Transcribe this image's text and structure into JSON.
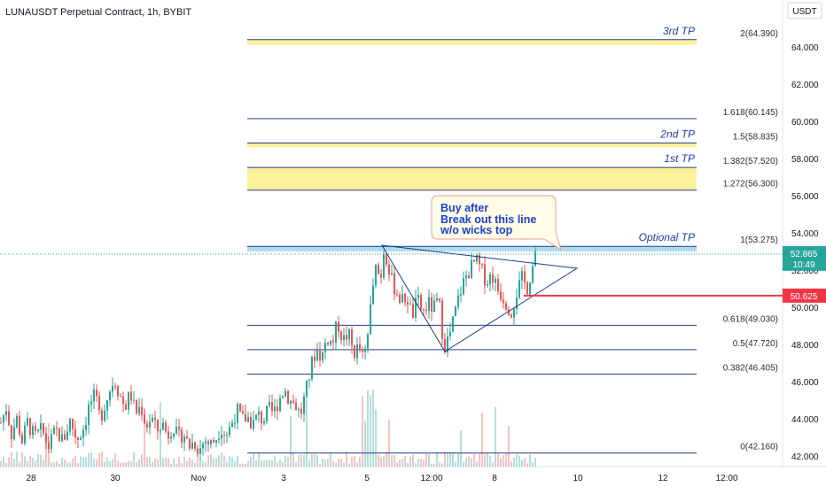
{
  "header": {
    "title": "LUNAUSDT Perpetual Contract, 1h, BYBIT",
    "currency": "USDT"
  },
  "colors": {
    "up": "#26a69a",
    "down": "#ef5350",
    "fib_line": "#283a8c",
    "tp_zone": "#fdf08a",
    "optional_zone": "#8fd3ec",
    "stop_line": "#f23645",
    "triangle": "#1e3a8a",
    "annotation_border": "#ef9a9a"
  },
  "chart_data": {
    "type": "candlestick",
    "symbol": "LUNAUSDT",
    "interval": "1h",
    "ylim": [
      41.8,
      65.5
    ],
    "y_ticks": [
      42,
      44,
      46,
      48,
      50,
      52,
      54,
      56,
      58,
      60,
      62,
      64
    ],
    "y_tick_labels": [
      "42.000",
      "44.000",
      "46.000",
      "48.000",
      "50.000",
      "52.000",
      "54.000",
      "56.000",
      "58.000",
      "60.000",
      "62.000",
      "64.000"
    ],
    "x_tick_labels": [
      "28",
      "30",
      "Nov",
      "3",
      "5",
      "12:00",
      "8",
      "10",
      "12",
      "12:00"
    ],
    "last_price": 52.865,
    "last_price_label": "52.865",
    "countdown": "10:49",
    "stop_level": 50.625,
    "stop_label": "50.625",
    "fib_levels": [
      {
        "label": "0(42.160)",
        "value": 42.16
      },
      {
        "label": "0.382(46.405)",
        "value": 46.405
      },
      {
        "label": "0.5(47.720)",
        "value": 47.72
      },
      {
        "label": "0.618(49.030)",
        "value": 49.03
      },
      {
        "label": "1(53.275)",
        "value": 53.275
      },
      {
        "label": "1.272(56.300)",
        "value": 56.3
      },
      {
        "label": "1.382(57.520)",
        "value": 57.52
      },
      {
        "label": "1.5(58.835)",
        "value": 58.835
      },
      {
        "label": "1.618(60.145)",
        "value": 60.145
      },
      {
        "label": "2(64.390)",
        "value": 64.39
      }
    ],
    "tp_zones": [
      {
        "label": "Optional TP",
        "from": 53.275,
        "to": 53.0,
        "kind": "optional"
      },
      {
        "label": "1st TP",
        "from": 56.3,
        "to": 57.52,
        "kind": "tp"
      },
      {
        "label": "2nd TP",
        "from": 58.835,
        "to": 58.6,
        "kind": "tp"
      },
      {
        "label": "3rd TP",
        "from": 64.39,
        "to": 64.1,
        "kind": "tp"
      }
    ],
    "annotation": "Buy after\nBreak out this line\nw/o wicks top",
    "price_path": [
      [
        0,
        43.8
      ],
      [
        6,
        44.6
      ],
      [
        12,
        43.2
      ],
      [
        18,
        44.0
      ],
      [
        24,
        42.8
      ],
      [
        30,
        43.8
      ],
      [
        38,
        43.0
      ],
      [
        46,
        43.4
      ],
      [
        54,
        42.5
      ],
      [
        62,
        43.4
      ],
      [
        70,
        42.8
      ],
      [
        78,
        43.9
      ],
      [
        86,
        42.9
      ],
      [
        94,
        43.6
      ],
      [
        100,
        44.8
      ],
      [
        106,
        45.2
      ],
      [
        112,
        44.0
      ],
      [
        118,
        44.9
      ],
      [
        124,
        45.7
      ],
      [
        128,
        46.2
      ],
      [
        134,
        45.3
      ],
      [
        140,
        44.6
      ],
      [
        146,
        45.4
      ],
      [
        152,
        44.3
      ],
      [
        158,
        44.7
      ],
      [
        164,
        43.6
      ],
      [
        170,
        44.1
      ],
      [
        176,
        43.3
      ],
      [
        182,
        43.8
      ],
      [
        188,
        43.1
      ],
      [
        194,
        43.7
      ],
      [
        200,
        42.9
      ],
      [
        206,
        43.3
      ],
      [
        212,
        42.5
      ],
      [
        218,
        42.8
      ],
      [
        224,
        42.3
      ],
      [
        230,
        42.9
      ],
      [
        236,
        42.6
      ],
      [
        242,
        42.9
      ],
      [
        248,
        43.6
      ],
      [
        254,
        43.1
      ],
      [
        260,
        43.7
      ],
      [
        266,
        44.5
      ],
      [
        272,
        43.9
      ],
      [
        278,
        44.1
      ],
      [
        284,
        43.7
      ],
      [
        290,
        44.2
      ],
      [
        296,
        43.9
      ],
      [
        302,
        44.5
      ],
      [
        308,
        44.3
      ],
      [
        314,
        45.1
      ],
      [
        320,
        45.6
      ],
      [
        326,
        45.0
      ],
      [
        332,
        44.8
      ],
      [
        338,
        44.2
      ],
      [
        344,
        45.4
      ],
      [
        350,
        46.8
      ],
      [
        356,
        47.8
      ],
      [
        362,
        47.3
      ],
      [
        368,
        48.4
      ],
      [
        374,
        48.0
      ],
      [
        380,
        49.2
      ],
      [
        386,
        48.2
      ],
      [
        392,
        48.6
      ],
      [
        398,
        47.5
      ],
      [
        404,
        47.9
      ],
      [
        410,
        47.0
      ],
      [
        416,
        49.4
      ],
      [
        420,
        51.6
      ],
      [
        424,
        52.2
      ],
      [
        428,
        51.4
      ],
      [
        432,
        53.1
      ],
      [
        436,
        52.6
      ],
      [
        440,
        51.5
      ],
      [
        446,
        50.9
      ],
      [
        452,
        50.3
      ],
      [
        458,
        50.6
      ],
      [
        464,
        49.5
      ],
      [
        470,
        50.4
      ],
      [
        476,
        49.7
      ],
      [
        482,
        50.2
      ],
      [
        488,
        49.9
      ],
      [
        494,
        50.4
      ],
      [
        500,
        47.9
      ],
      [
        506,
        48.4
      ],
      [
        512,
        49.6
      ],
      [
        518,
        50.8
      ],
      [
        524,
        51.6
      ],
      [
        530,
        52.1
      ],
      [
        536,
        52.5
      ],
      [
        542,
        52.0
      ],
      [
        548,
        51.4
      ],
      [
        554,
        51.8
      ],
      [
        560,
        51.0
      ],
      [
        566,
        50.6
      ],
      [
        572,
        50.1
      ],
      [
        576,
        49.8
      ],
      [
        582,
        50.8
      ],
      [
        588,
        51.5
      ],
      [
        594,
        51.1
      ],
      [
        600,
        52.2
      ],
      [
        605,
        52.865
      ]
    ]
  }
}
